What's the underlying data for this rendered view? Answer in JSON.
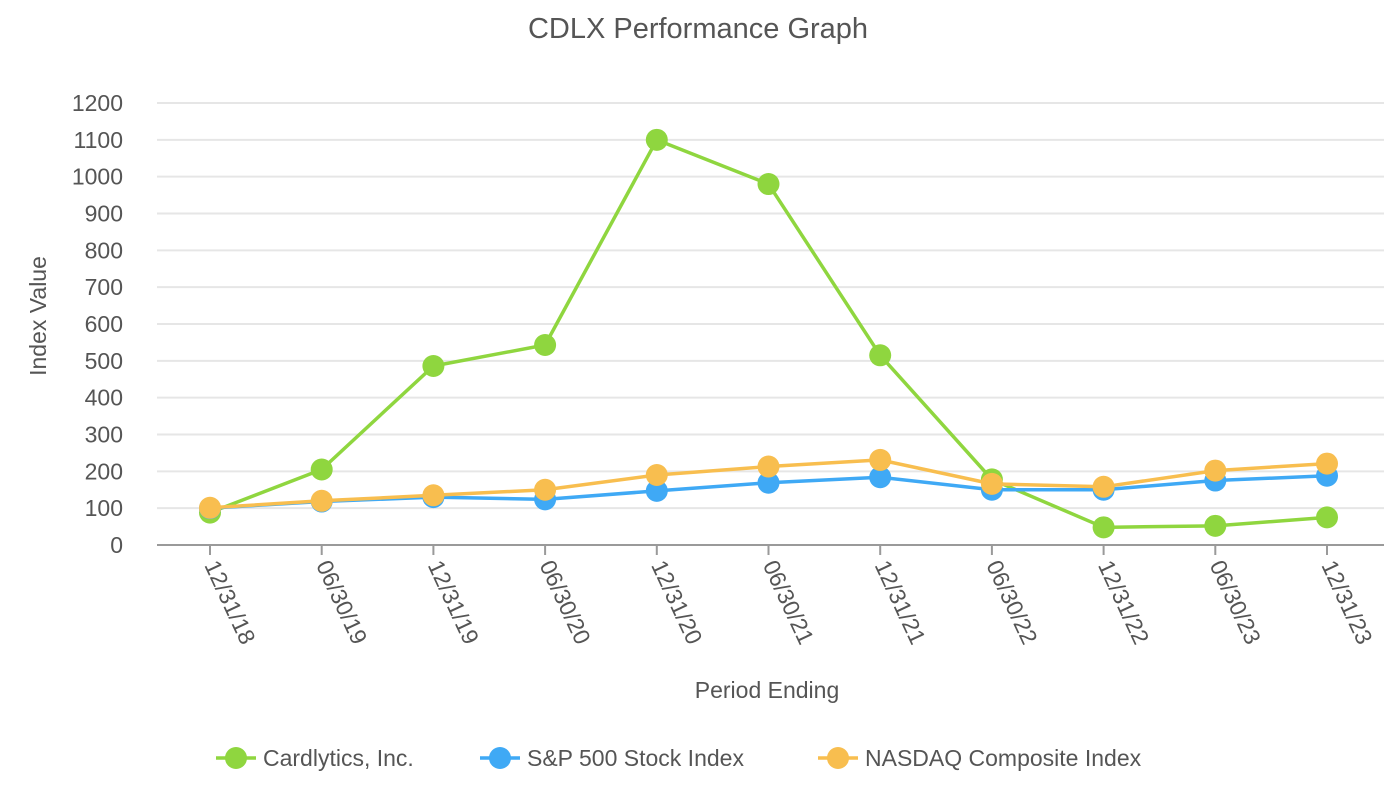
{
  "chart_data": {
    "type": "line",
    "title": "CDLX Performance Graph",
    "xlabel": "Period Ending",
    "ylabel": "Index Value",
    "ylim": [
      0,
      1200
    ],
    "yticks": [
      0,
      100,
      200,
      300,
      400,
      500,
      600,
      700,
      800,
      900,
      1000,
      1100,
      1200
    ],
    "categories": [
      "12/31/18",
      "06/30/19",
      "12/31/19",
      "06/30/20",
      "12/31/20",
      "06/30/21",
      "12/31/21",
      "06/30/22",
      "12/31/22",
      "06/30/23",
      "12/31/23"
    ],
    "grid": true,
    "legend_position": "bottom",
    "series": [
      {
        "name": "Cardlytics, Inc.",
        "color": "#8fd63f",
        "values": [
          88,
          205,
          486,
          543,
          1100,
          980,
          515,
          178,
          48,
          52,
          75
        ]
      },
      {
        "name": "S&P 500 Stock Index",
        "color": "#3fa9f5",
        "values": [
          100,
          118,
          130,
          124,
          147,
          169,
          184,
          150,
          150,
          175,
          188
        ]
      },
      {
        "name": "NASDAQ Composite Index",
        "color": "#f8be4f",
        "values": [
          101,
          120,
          135,
          150,
          190,
          213,
          231,
          166,
          158,
          202,
          221
        ]
      }
    ]
  }
}
